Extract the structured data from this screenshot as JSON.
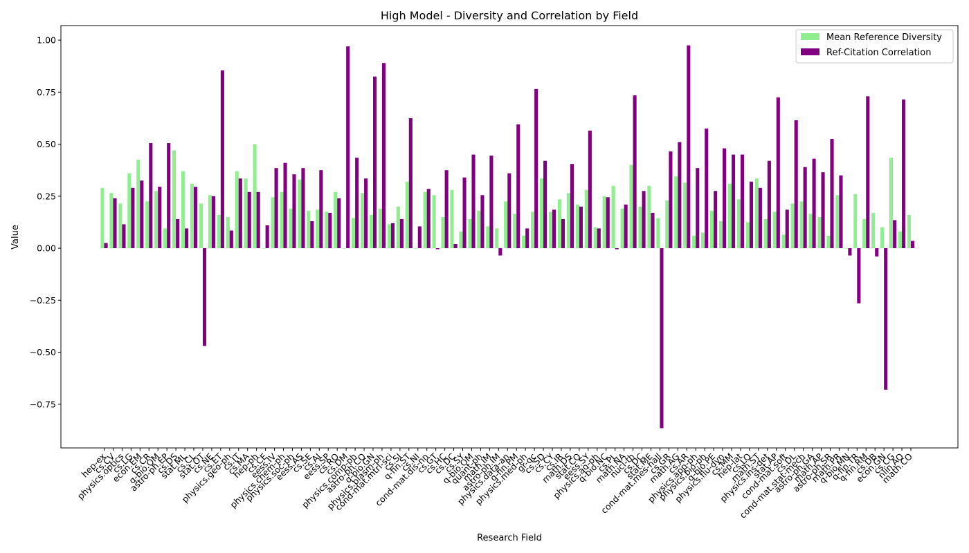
{
  "chart_data": {
    "type": "bar",
    "title": "High Model - Diversity and Correlation by Field",
    "xlabel": "Research Field",
    "ylabel": "Value",
    "ylim": [
      -0.96,
      1.07
    ],
    "yticks": [
      -0.75,
      -0.5,
      -0.25,
      0.0,
      0.25,
      0.5,
      0.75,
      1.0
    ],
    "ytick_labels": [
      "−0.75",
      "−0.50",
      "−0.25",
      "0.00",
      "0.25",
      "0.50",
      "0.75",
      "1.00"
    ],
    "grid": false,
    "legend_position": "top-right",
    "categories": [
      "hep-ex",
      "cs.CV",
      "physics.optics",
      "cs.LG",
      "econ.EM",
      "cs.CR",
      "q-bio.QM",
      "astro-ph.EP",
      "cs.DS",
      "stat.ML",
      "cs.CL",
      "stat.OT",
      "cs.NE",
      "cs.ET",
      "physics.geo-ph",
      "cs.IT",
      "cs.MA",
      "hep-ph",
      "cs.CE",
      "eess.IV",
      "physics.chem-ph",
      "physics.soc-ph",
      "eess.AS",
      "cs.SE",
      "cs.AI",
      "eess.SP",
      "cs.RO",
      "cs.DM",
      "physics.comp-ph",
      "astro-ph.CO",
      "q-bio.GN",
      "physics.plasm-ph",
      "cond-mat.mtrl-sci",
      "cs.SI",
      "q-fin.ST",
      "cs.NI",
      "cond-mat.dis-nn",
      "cs.GT",
      "cs.HC",
      "cs.DC",
      "cs.SY",
      "q-bio.OM",
      "quant-ph",
      "math.IM",
      "astro-ph.IM",
      "physics.data-an",
      "q-fin.PM",
      "physics.med-ph",
      "gr-qc",
      "cs.SD",
      "cs.CY",
      "cs.IR",
      "math.DS",
      "stat.CO",
      "eess.SY",
      "physics.ao-ph",
      "q-bio.NC",
      "cs.PL",
      "math.NA",
      "nucl-th",
      "cs.DC",
      "stat.ME",
      "cond-mat.mes-hall",
      "cs.GR",
      "math.AG",
      "cs.AR",
      "physics.app-ph",
      "physics.bio-ph",
      "q-bio.PE",
      "physics.flu-dyn",
      "cs.MM",
      "hep-lat",
      "cs.LO",
      "math.ST",
      "physics.ins-det",
      "stat.AP",
      "cond-mat.soft",
      "cs.DL",
      "cond-mat.stat-mech",
      "astro-ph.GA",
      "math.AP",
      "astro-ph.SR",
      "math.PR",
      "q-bio.MN",
      "q-fin.TR",
      "q-fin.RM",
      "cs.DB",
      "econ.GN",
      "cs.CG",
      "nlin.AO",
      "math.CO"
    ],
    "series": [
      {
        "name": "Mean Reference Diversity",
        "color": "#90ee90",
        "values": [
          0.29,
          0.265,
          0.215,
          0.36,
          0.425,
          0.225,
          0.275,
          0.095,
          0.47,
          0.37,
          0.31,
          0.215,
          0.255,
          0.16,
          0.15,
          0.37,
          0.335,
          0.5,
          0.0,
          0.245,
          0.27,
          0.19,
          0.33,
          0.18,
          0.185,
          0.175,
          0.27,
          0.0,
          0.145,
          0.265,
          0.16,
          0.19,
          0.115,
          0.2,
          0.32,
          0.0,
          0.27,
          0.255,
          0.15,
          0.28,
          0.08,
          0.14,
          0.18,
          0.105,
          0.095,
          0.225,
          0.165,
          0.06,
          0.175,
          0.335,
          0.175,
          0.235,
          0.265,
          0.21,
          0.28,
          0.1,
          0.25,
          0.3,
          0.19,
          0.4,
          0.2,
          0.3,
          0.145,
          0.23,
          0.345,
          0.315,
          0.06,
          0.075,
          0.18,
          0.13,
          0.31,
          0.235,
          0.125,
          0.335,
          0.14,
          0.175,
          0.065,
          0.215,
          0.225,
          0.165,
          0.15,
          0.06,
          0.255,
          0.0,
          0.26,
          0.14,
          0.17,
          0.1,
          0.435,
          0.08,
          0.16
        ]
      },
      {
        "name": "Ref-Citation Correlation",
        "color": "#800080",
        "values": [
          0.025,
          0.24,
          0.115,
          0.29,
          0.325,
          0.505,
          0.295,
          0.505,
          0.14,
          0.095,
          0.295,
          -0.47,
          0.25,
          0.855,
          0.085,
          0.335,
          0.27,
          0.27,
          0.11,
          0.385,
          0.41,
          0.355,
          0.385,
          0.13,
          0.375,
          0.17,
          0.24,
          0.97,
          0.435,
          0.335,
          0.825,
          0.89,
          0.12,
          0.14,
          0.625,
          0.105,
          0.285,
          -0.005,
          0.375,
          0.02,
          0.34,
          0.45,
          0.255,
          0.445,
          -0.035,
          0.36,
          0.595,
          0.095,
          0.765,
          0.42,
          0.185,
          0.14,
          0.405,
          0.2,
          0.565,
          0.095,
          0.245,
          -0.005,
          0.21,
          0.735,
          0.275,
          0.17,
          -0.865,
          0.465,
          0.51,
          0.975,
          0.385,
          0.575,
          0.275,
          0.48,
          0.45,
          0.45,
          0.32,
          0.29,
          0.42,
          0.725,
          0.185,
          0.615,
          0.39,
          0.43,
          0.365,
          0.525,
          0.35,
          -0.035,
          -0.265,
          0.73,
          -0.04,
          -0.68,
          0.135,
          0.715,
          0.035
        ]
      }
    ]
  }
}
